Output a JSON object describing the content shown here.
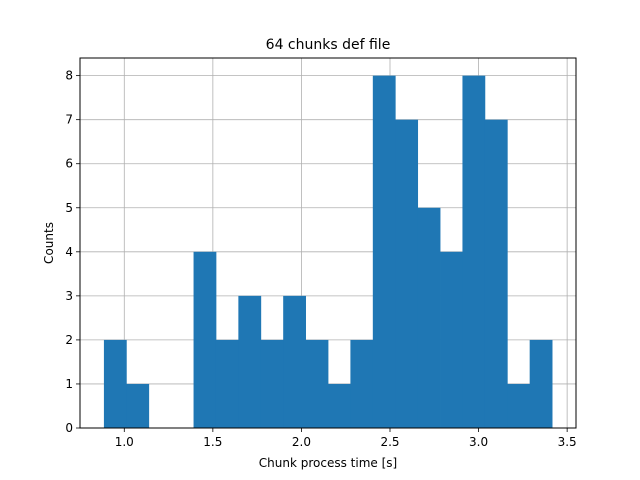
{
  "chart_data": {
    "type": "bar",
    "title": "64 chunks def file",
    "xlabel": "Chunk process time [s]",
    "ylabel": "Counts",
    "xlim": [
      0.75,
      3.55
    ],
    "ylim": [
      0,
      8.4
    ],
    "xticks": [
      "1.0",
      "1.5",
      "2.0",
      "2.5",
      "3.0",
      "3.5"
    ],
    "xtick_values": [
      1.0,
      1.5,
      2.0,
      2.5,
      3.0,
      3.5
    ],
    "yticks": [
      "0",
      "1",
      "2",
      "3",
      "4",
      "5",
      "6",
      "7",
      "8"
    ],
    "grid": true,
    "bar_color": "#1f77b4",
    "bin_start": 0.885,
    "bin_width": 0.1265,
    "counts": [
      2,
      1,
      0,
      0,
      4,
      2,
      3,
      2,
      3,
      2,
      1,
      2,
      8,
      7,
      5,
      4,
      8,
      7,
      1,
      2
    ]
  }
}
